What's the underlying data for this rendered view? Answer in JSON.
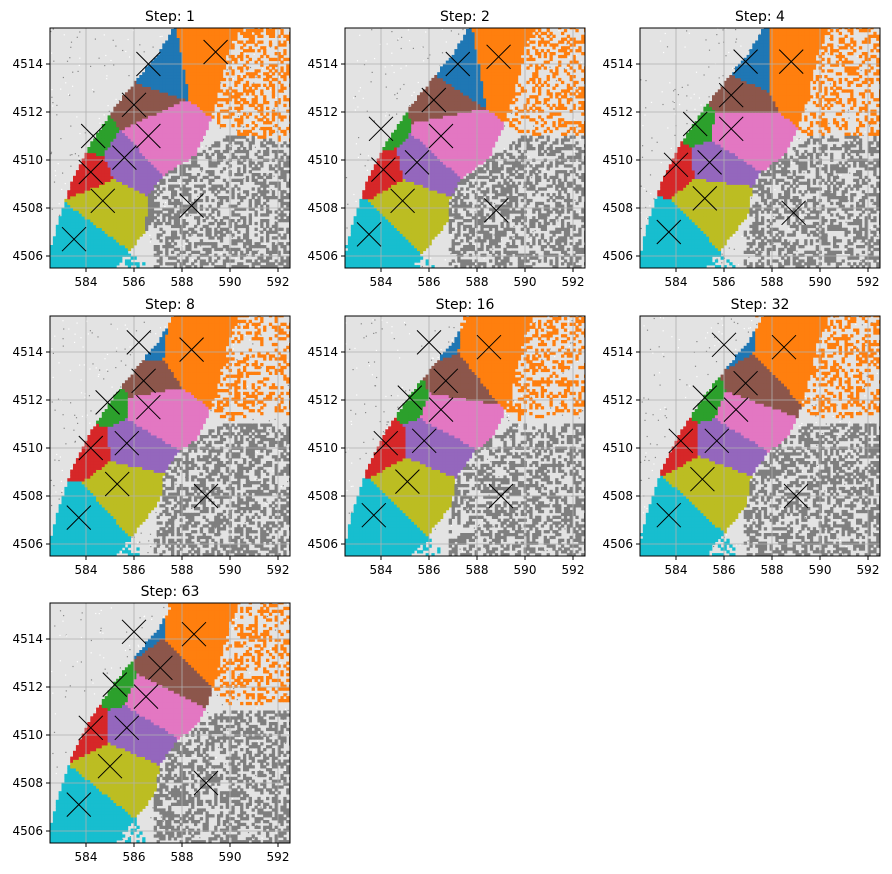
{
  "chart_data": {
    "type": "scatter",
    "description_free": true,
    "xlim": [
      582.5,
      592.5
    ],
    "ylim": [
      4505.5,
      4515.5
    ],
    "xticks": [
      584,
      586,
      588,
      590,
      592
    ],
    "yticks": [
      4506,
      4508,
      4510,
      4512,
      4514
    ],
    "grid": true,
    "background_points_color": "#bdbdbd",
    "marker": "x",
    "marker_color": "#000000",
    "cluster_colors": [
      "#1f77b4",
      "#ff7f0e",
      "#2ca02c",
      "#d62728",
      "#9467bd",
      "#8c564b",
      "#e377c2",
      "#7f7f7f",
      "#bcbd22",
      "#17becf"
    ],
    "panels": [
      {
        "title": "Step: 1",
        "centroids": [
          {
            "x": 586.6,
            "y": 4514.0
          },
          {
            "x": 589.4,
            "y": 4514.5
          },
          {
            "x": 584.3,
            "y": 4511.0
          },
          {
            "x": 584.2,
            "y": 4509.5
          },
          {
            "x": 585.6,
            "y": 4510.1
          },
          {
            "x": 586.0,
            "y": 4512.3
          },
          {
            "x": 586.6,
            "y": 4511.0
          },
          {
            "x": 588.4,
            "y": 4508.1
          },
          {
            "x": 584.7,
            "y": 4508.3
          },
          {
            "x": 583.5,
            "y": 4506.7
          }
        ]
      },
      {
        "title": "Step: 2",
        "centroids": [
          {
            "x": 587.2,
            "y": 4514.0
          },
          {
            "x": 588.9,
            "y": 4514.3
          },
          {
            "x": 584.0,
            "y": 4511.3
          },
          {
            "x": 584.1,
            "y": 4509.6
          },
          {
            "x": 585.5,
            "y": 4509.9
          },
          {
            "x": 586.2,
            "y": 4512.5
          },
          {
            "x": 586.5,
            "y": 4511.0
          },
          {
            "x": 588.8,
            "y": 4507.9
          },
          {
            "x": 584.9,
            "y": 4508.3
          },
          {
            "x": 583.5,
            "y": 4506.9
          }
        ]
      },
      {
        "title": "Step: 4",
        "centroids": [
          {
            "x": 586.9,
            "y": 4514.1
          },
          {
            "x": 588.8,
            "y": 4514.1
          },
          {
            "x": 584.8,
            "y": 4511.5
          },
          {
            "x": 584.0,
            "y": 4509.8
          },
          {
            "x": 585.4,
            "y": 4509.9
          },
          {
            "x": 586.3,
            "y": 4512.7
          },
          {
            "x": 586.3,
            "y": 4511.3
          },
          {
            "x": 588.9,
            "y": 4507.8
          },
          {
            "x": 585.2,
            "y": 4508.4
          },
          {
            "x": 583.7,
            "y": 4507.0
          }
        ]
      },
      {
        "title": "Step: 8",
        "centroids": [
          {
            "x": 586.2,
            "y": 4514.4
          },
          {
            "x": 588.4,
            "y": 4514.1
          },
          {
            "x": 584.9,
            "y": 4511.9
          },
          {
            "x": 584.2,
            "y": 4510.0
          },
          {
            "x": 585.7,
            "y": 4510.2
          },
          {
            "x": 586.4,
            "y": 4512.8
          },
          {
            "x": 586.6,
            "y": 4511.7
          },
          {
            "x": 589.0,
            "y": 4508.0
          },
          {
            "x": 585.3,
            "y": 4508.5
          },
          {
            "x": 583.7,
            "y": 4507.1
          }
        ]
      },
      {
        "title": "Step: 16",
        "centroids": [
          {
            "x": 586.0,
            "y": 4514.4
          },
          {
            "x": 588.5,
            "y": 4514.2
          },
          {
            "x": 585.2,
            "y": 4512.1
          },
          {
            "x": 584.2,
            "y": 4510.2
          },
          {
            "x": 585.8,
            "y": 4510.3
          },
          {
            "x": 586.7,
            "y": 4512.8
          },
          {
            "x": 586.5,
            "y": 4511.6
          },
          {
            "x": 589.0,
            "y": 4508.0
          },
          {
            "x": 585.1,
            "y": 4508.6
          },
          {
            "x": 583.7,
            "y": 4507.2
          }
        ]
      },
      {
        "title": "Step: 32",
        "centroids": [
          {
            "x": 586.0,
            "y": 4514.3
          },
          {
            "x": 588.5,
            "y": 4514.2
          },
          {
            "x": 585.2,
            "y": 4512.1
          },
          {
            "x": 584.2,
            "y": 4510.3
          },
          {
            "x": 585.7,
            "y": 4510.3
          },
          {
            "x": 586.9,
            "y": 4512.7
          },
          {
            "x": 586.5,
            "y": 4511.6
          },
          {
            "x": 589.0,
            "y": 4508.0
          },
          {
            "x": 585.1,
            "y": 4508.7
          },
          {
            "x": 583.7,
            "y": 4507.2
          }
        ]
      },
      {
        "title": "Step: 63",
        "centroids": [
          {
            "x": 586.0,
            "y": 4514.3
          },
          {
            "x": 588.5,
            "y": 4514.2
          },
          {
            "x": 585.2,
            "y": 4512.1
          },
          {
            "x": 584.2,
            "y": 4510.3
          },
          {
            "x": 585.7,
            "y": 4510.3
          },
          {
            "x": 587.1,
            "y": 4512.8
          },
          {
            "x": 586.5,
            "y": 4511.6
          },
          {
            "x": 589.0,
            "y": 4508.0
          },
          {
            "x": 585.0,
            "y": 4508.7
          },
          {
            "x": 583.7,
            "y": 4507.1
          }
        ]
      }
    ]
  }
}
